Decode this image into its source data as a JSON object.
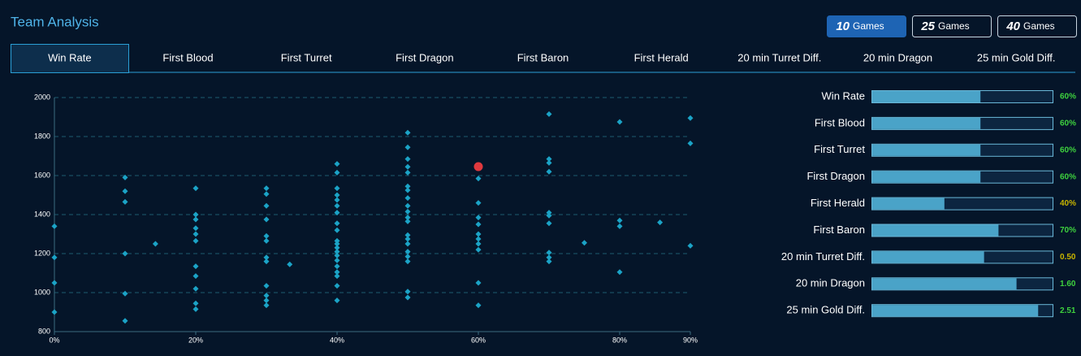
{
  "header": {
    "title": "Team Analysis"
  },
  "buttons": {
    "active": 0,
    "items": [
      {
        "number": 10,
        "label": "Games"
      },
      {
        "number": 25,
        "label": "Games"
      },
      {
        "number": 40,
        "label": "Games"
      }
    ]
  },
  "tabs": {
    "active": 0,
    "items": [
      "Win Rate",
      "First Blood",
      "First Turret",
      "First Dragon",
      "First Baron",
      "First Herald",
      "20 min Turret Diff.",
      "20 min Dragon",
      "25 min Gold Diff."
    ]
  },
  "chart_data": {
    "type": "scatter",
    "color": "#1ba3c6",
    "grid": true,
    "x": [
      0,
      0,
      0,
      0,
      10,
      10,
      10,
      10,
      10,
      10,
      14.3,
      20,
      20,
      20,
      20,
      20,
      20,
      20,
      20,
      20,
      20,
      20,
      30,
      30,
      30,
      30,
      30,
      30,
      30,
      30,
      30,
      30,
      30,
      30,
      33.3,
      40,
      40,
      40,
      40,
      40,
      40,
      40,
      40,
      40,
      40,
      40,
      40,
      40,
      40,
      40,
      40,
      40,
      40,
      40,
      40,
      50,
      50,
      50,
      50,
      50,
      50,
      50,
      50,
      50,
      50,
      50,
      50,
      50,
      50,
      50,
      50,
      50,
      50,
      50,
      50,
      60,
      60,
      60,
      60,
      60,
      60,
      60,
      60,
      60,
      60,
      70,
      70,
      70,
      70,
      70,
      70,
      70,
      70,
      70,
      70,
      75,
      80,
      80,
      80,
      80,
      85.7,
      90,
      90,
      90
    ],
    "values": [
      1340,
      1180,
      1050,
      900,
      1590,
      1520,
      1465,
      1200,
      995,
      855,
      1250,
      1535,
      1400,
      1375,
      1330,
      1300,
      1265,
      1135,
      1085,
      1020,
      945,
      915,
      1535,
      1505,
      1445,
      1375,
      1290,
      1265,
      1180,
      1160,
      1035,
      985,
      960,
      935,
      1145,
      1660,
      1615,
      1535,
      1500,
      1475,
      1445,
      1410,
      1355,
      1320,
      1265,
      1250,
      1230,
      1210,
      1190,
      1165,
      1135,
      1105,
      1085,
      1035,
      960,
      1820,
      1745,
      1685,
      1645,
      1615,
      1545,
      1525,
      1485,
      1445,
      1415,
      1385,
      1365,
      1295,
      1275,
      1250,
      1210,
      1185,
      1160,
      1005,
      975,
      1585,
      1460,
      1385,
      1350,
      1300,
      1275,
      1250,
      1220,
      1050,
      935,
      1915,
      1685,
      1665,
      1620,
      1410,
      1395,
      1355,
      1205,
      1180,
      1160,
      1255,
      1875,
      1370,
      1340,
      1105,
      1360,
      1895,
      1765,
      1240
    ],
    "highlight": {
      "x": 60,
      "value": 1646,
      "color": "#e0393e"
    },
    "xlim": [
      0,
      90
    ],
    "ylim": [
      800,
      2000
    ],
    "xticks": [
      {
        "value": 0,
        "label": "0%"
      },
      {
        "value": 20,
        "label": "20%"
      },
      {
        "value": 40,
        "label": "40%"
      },
      {
        "value": 60,
        "label": "60%"
      },
      {
        "value": 80,
        "label": "80%"
      },
      {
        "value": 90,
        "label": "90%"
      }
    ],
    "yticks": [
      800,
      1000,
      1200,
      1400,
      1600,
      1800,
      2000
    ]
  },
  "comparison": {
    "rows": [
      {
        "label": "Win Rate",
        "value": 60,
        "value_label": "60%",
        "fill": 60,
        "color": "#3ed13e"
      },
      {
        "label": "First Blood",
        "value": 60,
        "value_label": "60%",
        "fill": 60,
        "color": "#3ed13e"
      },
      {
        "label": "First Turret",
        "value": 60,
        "value_label": "60%",
        "fill": 60,
        "color": "#3ed13e"
      },
      {
        "label": "First Dragon",
        "value": 60,
        "value_label": "60%",
        "fill": 60,
        "color": "#3ed13e"
      },
      {
        "label": "First Herald",
        "value": 40,
        "value_label": "40%",
        "fill": 40,
        "color": "#c8b400"
      },
      {
        "label": "First Baron",
        "value": 70,
        "value_label": "70%",
        "fill": 70,
        "color": "#3ed13e"
      },
      {
        "label": "20 min Turret Diff.",
        "value": 0.5,
        "value_label": "0.50",
        "fill": 62,
        "color": "#c8b400"
      },
      {
        "label": "20 min Dragon",
        "value": 1.6,
        "value_label": "1.60",
        "fill": 80,
        "color": "#3ed13e"
      },
      {
        "label": "25 min Gold Diff.",
        "value": 2.51,
        "value_label": "2.51",
        "fill": 92,
        "color": "#3ed13e"
      }
    ]
  }
}
